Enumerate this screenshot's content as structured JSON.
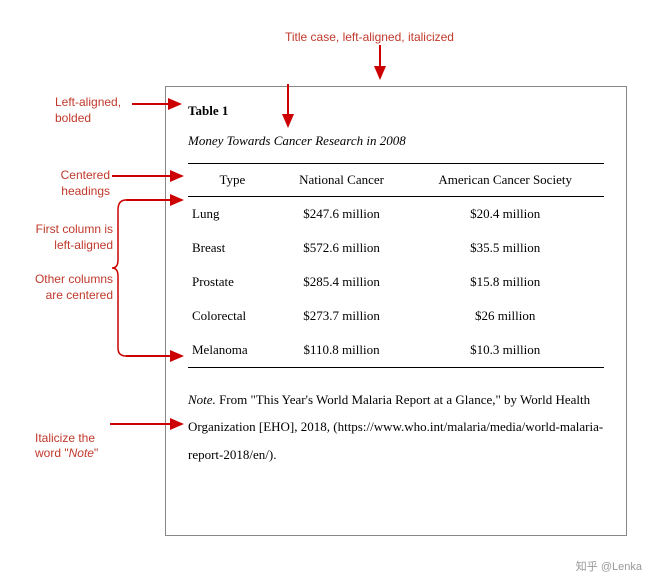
{
  "annotations": {
    "top": "Title case, left-aligned, italicized",
    "left1": "Left-aligned,\nbolded",
    "left2": "Centered\nheadings",
    "left3": "First column is\nleft-aligned",
    "left4": "Other columns\nare centered",
    "left5": "Italicize the\nword \"Note\""
  },
  "annotation_color": "#c0392b",
  "arrow_color": "#cc0000",
  "table": {
    "number": "Table 1",
    "title": "Money Towards Cancer Research in 2008",
    "columns": [
      "Type",
      "National Cancer",
      "American Cancer Society"
    ],
    "rows": [
      [
        "Lung",
        "$247.6 million",
        "$20.4 million"
      ],
      [
        "Breast",
        "$572.6 million",
        "$35.5 million"
      ],
      [
        "Prostate",
        "$285.4 million",
        "$15.8 million"
      ],
      [
        "Colorectal",
        "$273.7 million",
        "$26 million"
      ],
      [
        "Melanoma",
        "$110.8 million",
        "$10.3 million"
      ]
    ],
    "note_label": "Note.",
    "note_text": " From \"This Year's World Malaria Report at a Glance,\" by World Health Organization [EHO], 2018, (https://www.who.int/malaria/media/world-malaria-report-2018/en/)."
  },
  "watermark": "知乎 @Lenka",
  "box_border_color": "#888888",
  "table_border_color": "#000000"
}
